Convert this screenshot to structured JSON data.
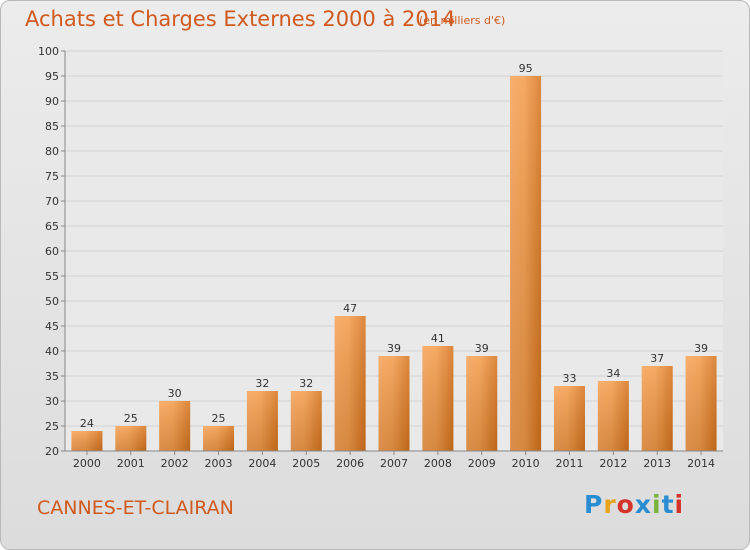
{
  "header": {
    "title": "Achats et Charges Externes 2000 à 2014",
    "subtitle": "(en milliers d'€)"
  },
  "footer": {
    "commune": "CANNES-ET-CLAIRAN",
    "logo": "Proxiti",
    "logo_colors": [
      "#2a8dd2",
      "#e8a31d",
      "#d3332a",
      "#2a8dd2",
      "#7ab33e",
      "#2a8dd2",
      "#d3332a"
    ]
  },
  "chart_data": {
    "type": "bar",
    "title": "Achats et Charges Externes 2000 à 2014",
    "subtitle": "(en milliers d'€)",
    "xlabel": "",
    "ylabel": "",
    "categories": [
      "2000",
      "2001",
      "2002",
      "2003",
      "2004",
      "2005",
      "2006",
      "2007",
      "2008",
      "2009",
      "2010",
      "2011",
      "2012",
      "2013",
      "2014"
    ],
    "values": [
      24,
      25,
      30,
      25,
      32,
      32,
      47,
      39,
      41,
      39,
      95,
      33,
      34,
      37,
      39
    ],
    "ylim": [
      20,
      100
    ],
    "yticks": [
      20,
      25,
      30,
      35,
      40,
      45,
      50,
      55,
      60,
      65,
      70,
      75,
      80,
      85,
      90,
      95,
      100
    ],
    "grid": true,
    "legend": "none",
    "bar_color": "#f08a2a"
  }
}
